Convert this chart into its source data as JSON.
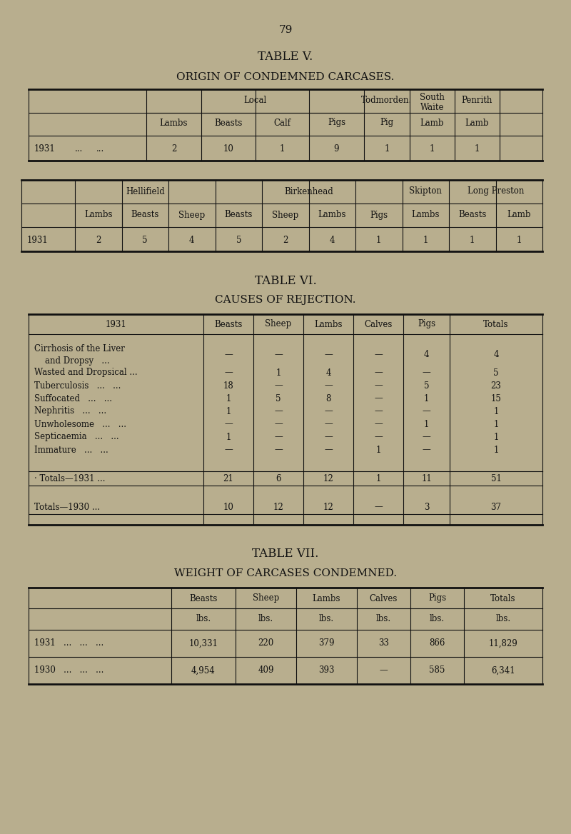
{
  "bg_color": "#b8ae8e",
  "page_num": "79",
  "table5_title": "Table V.",
  "table5_subtitle": "Origin of Condemned Carcases.",
  "table6_title": "Table VI.",
  "table6_subtitle": "Causes of Rejection.",
  "table7_title": "Table VII.",
  "table7_subtitle": "Weight of Carcases Condemned.",
  "table5_data": [
    "2",
    "10",
    "1",
    "9",
    "1",
    "1",
    "1"
  ],
  "table5b_data": [
    "2",
    "5",
    "4",
    "5",
    "2",
    "4",
    "1",
    "1",
    "1",
    "1"
  ],
  "table6_rows": [
    [
      "Cirrhosis of the Liver",
      "and Dropsy   ...",
      "—",
      "—",
      "—",
      "—",
      "4",
      "4"
    ],
    [
      "Wasted and Dropsical ...",
      "",
      "—",
      "1",
      "4",
      "—",
      "—",
      "5"
    ],
    [
      "Tuberculosis   ...   ...",
      "",
      "18",
      "—",
      "—",
      "—",
      "5",
      "23"
    ],
    [
      "Suffocated   ...   ...",
      "",
      "1",
      "5",
      "8",
      "—",
      "1",
      "15"
    ],
    [
      "Nephritis   ...   ...",
      "",
      "1",
      "—",
      "—",
      "—",
      "—",
      "1"
    ],
    [
      "Unwholesome   ...   ...",
      "",
      "—",
      "—",
      "—",
      "—",
      "1",
      "1"
    ],
    [
      "Septicaemia   ...   ...",
      "",
      "1",
      "—",
      "—",
      "—",
      "—",
      "1"
    ],
    [
      "Immature   ...   ...",
      "",
      "—",
      "—",
      "—",
      "1",
      "—",
      "1"
    ]
  ],
  "table6_totals1931": [
    "21",
    "6",
    "12",
    "1",
    "11",
    "51"
  ],
  "table6_totals1930": [
    "10",
    "12",
    "12",
    "—",
    "3",
    "37"
  ],
  "table7_1931": [
    "10,331",
    "220",
    "379",
    "33",
    "866",
    "11,829"
  ],
  "table7_1930": [
    "4,954",
    "409",
    "393",
    "—",
    "585",
    "6,341"
  ],
  "text_color": "#111111",
  "line_color": "#111111",
  "font_size_page": 11,
  "font_size_title": 12,
  "font_size_subtitle": 11,
  "font_size_table": 8.5
}
